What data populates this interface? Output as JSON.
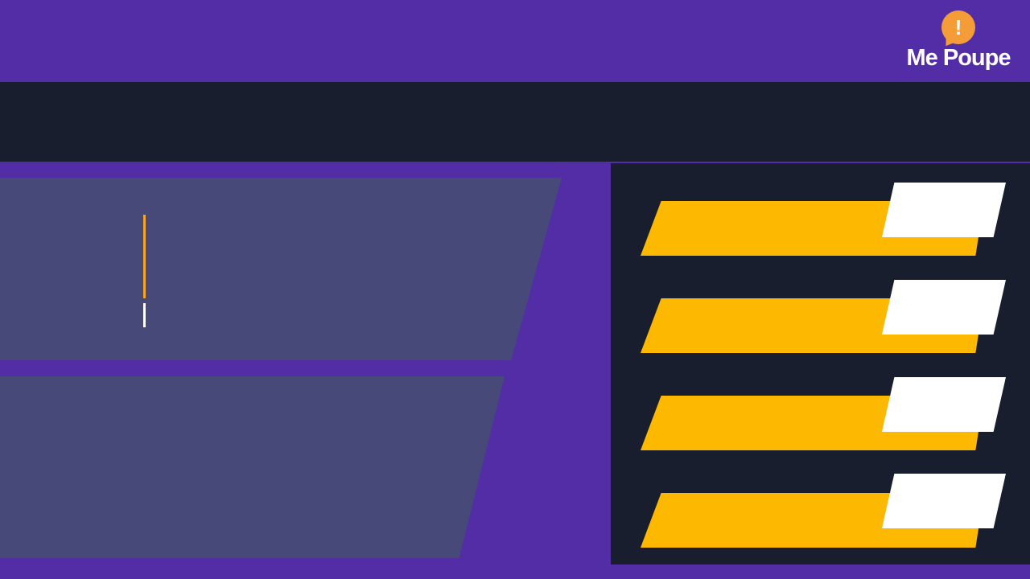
{
  "brand": {
    "badge_symbol": "!",
    "name": "Me Poupe",
    "colors": {
      "primary": "#522da5",
      "dark": "#181e2d",
      "accent": "#fdb901",
      "badge": "#f39c38"
    }
  },
  "rows": [
    {
      "label": "",
      "tag": ""
    },
    {
      "label": "",
      "tag": ""
    },
    {
      "label": "",
      "tag": ""
    },
    {
      "label": "",
      "tag": ""
    }
  ]
}
